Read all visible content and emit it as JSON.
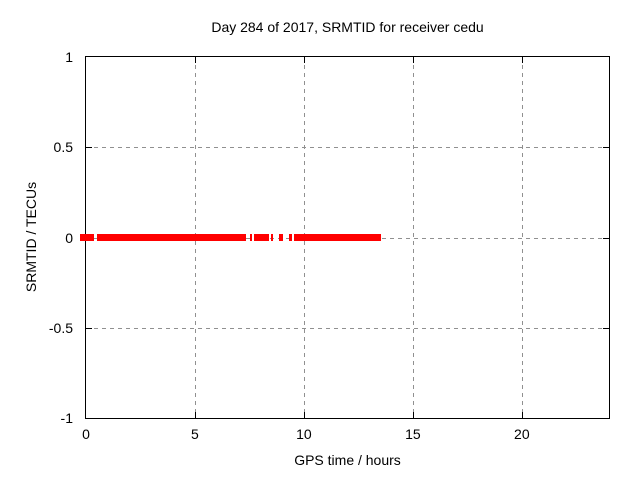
{
  "chart_data": {
    "type": "scatter",
    "title": "Day 284 of 2017, SRMTID for receiver cedu",
    "xlabel": "GPS time / hours",
    "ylabel": "SRMTID / TECUs",
    "xlim": [
      0,
      24
    ],
    "ylim": [
      -1,
      1
    ],
    "grid": true,
    "legend": "none",
    "xticks": [
      {
        "v": 0,
        "label": "0"
      },
      {
        "v": 5,
        "label": "5"
      },
      {
        "v": 10,
        "label": "10"
      },
      {
        "v": 15,
        "label": "15"
      },
      {
        "v": 20,
        "label": "20"
      }
    ],
    "yticks": [
      {
        "v": 1,
        "label": "1"
      },
      {
        "v": 0.5,
        "label": "0.5"
      },
      {
        "v": 0,
        "label": "0"
      },
      {
        "v": -0.5,
        "label": "-0.5"
      },
      {
        "v": -1,
        "label": "-1"
      }
    ],
    "series": [
      {
        "name": "SRMTID",
        "marker": "filled-square-points",
        "color": "#ff0000",
        "y_value": 0,
        "segments_hours": [
          [
            -0.27,
            0.37
          ],
          [
            0.5,
            7.35
          ],
          [
            7.51,
            7.64
          ],
          [
            7.73,
            8.38
          ],
          [
            8.5,
            8.57
          ],
          [
            8.86,
            9.03
          ],
          [
            9.3,
            9.46
          ],
          [
            9.53,
            13.55
          ]
        ]
      }
    ]
  },
  "colors": {
    "background": "#ffffff",
    "axis": "#000000",
    "grid": "#909090",
    "series": "#ff0000",
    "text": "#000000"
  }
}
